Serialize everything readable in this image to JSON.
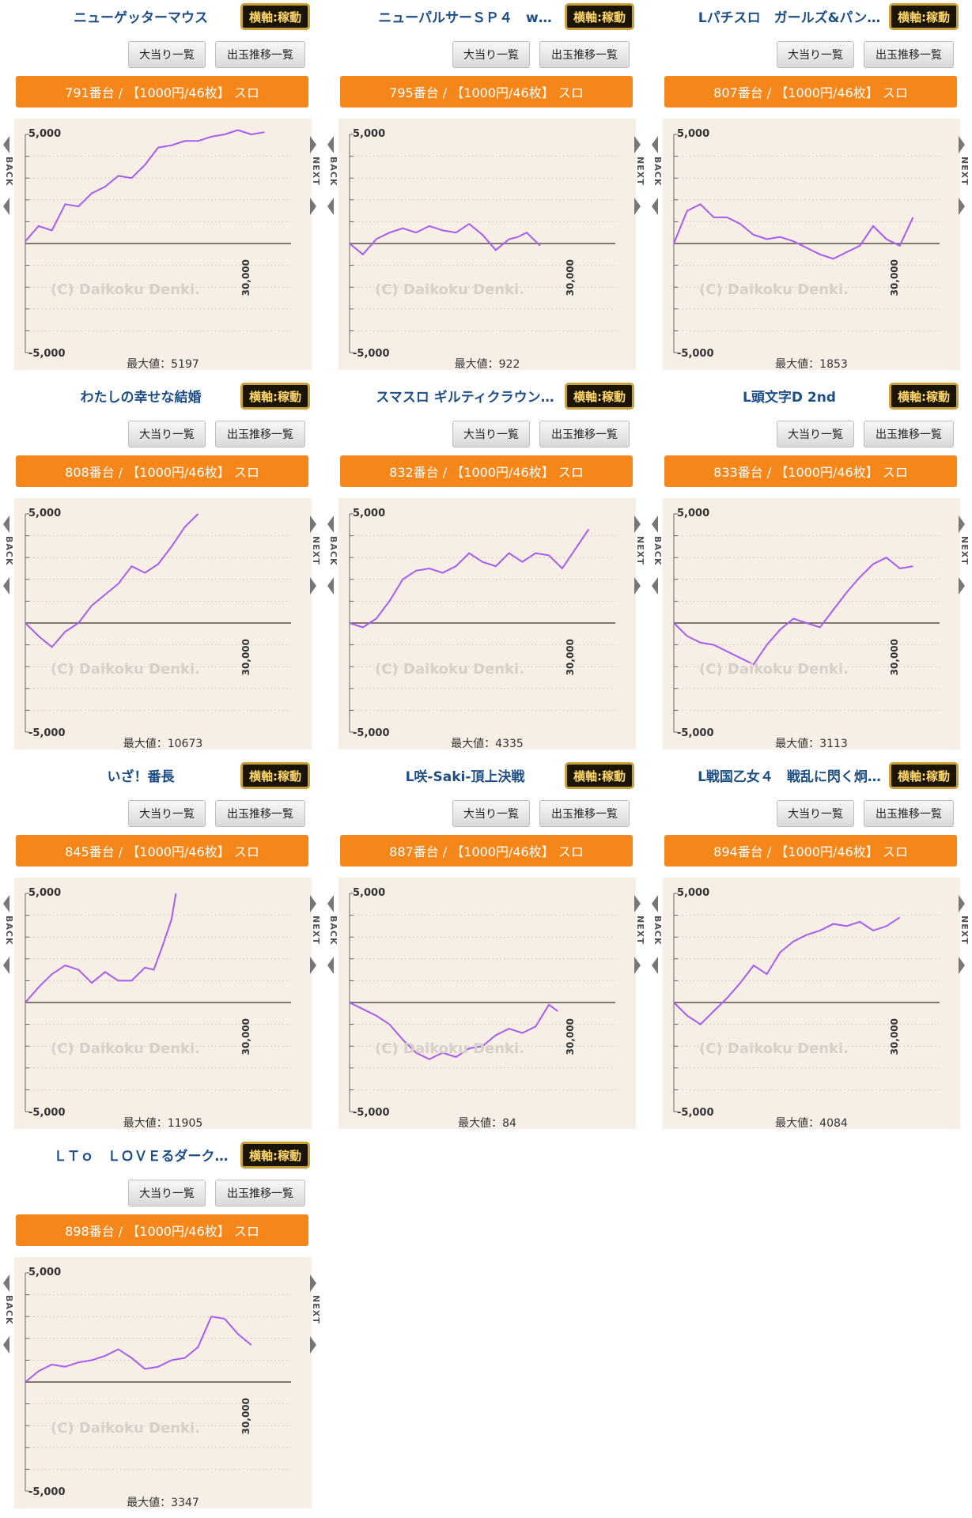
{
  "common": {
    "status_label": "横軸:稼動",
    "hits_button": "大当り一覧",
    "trend_button": "出玉推移一覧",
    "back_label": "BACK",
    "next_label": "NEXT",
    "y_top_label": "5,000",
    "y_bottom_label": "-5,000",
    "x_max_label": "30,000",
    "watermark": "(C) Daikoku Denki.",
    "colors": {
      "accent": "#f5871a",
      "line": "#a55cf0",
      "panel": "#f7efe6",
      "title": "#1e4e86"
    }
  },
  "machines": [
    {
      "title": "ニューゲッターマウス",
      "bar": "791番台 / 【1000円/46枚】 スロ",
      "max_label": "最大値：5197"
    },
    {
      "title": "ニューパルサーＳＰ４　w…",
      "bar": "795番台 / 【1000円/46枚】 スロ",
      "max_label": "最大値：922"
    },
    {
      "title": "Lパチスロ　ガールズ&パン…",
      "bar": "807番台 / 【1000円/46枚】 スロ",
      "max_label": "最大値：1853"
    },
    {
      "title": "わたしの幸せな結婚",
      "bar": "808番台 / 【1000円/46枚】 スロ",
      "max_label": "最大値：10673"
    },
    {
      "title": "スマスロ ギルティクラウン…",
      "bar": "832番台 / 【1000円/46枚】 スロ",
      "max_label": "最大値：4335"
    },
    {
      "title": "L頭文字D 2nd",
      "bar": "833番台 / 【1000円/46枚】 スロ",
      "max_label": "最大値：3113"
    },
    {
      "title": "いざ！番長",
      "bar": "845番台 / 【1000円/46枚】 スロ",
      "max_label": "最大値：11905"
    },
    {
      "title": "L咲-Saki-頂上決戦",
      "bar": "887番台 / 【1000円/46枚】 スロ",
      "max_label": "最大値：84"
    },
    {
      "title": "L戦国乙女４　戦乱に閃く炯…",
      "bar": "894番台 / 【1000円/46枚】 スロ",
      "max_label": "最大値：4084"
    },
    {
      "title": "ＬＴｏ　ＬＯＶＥるダーク…",
      "bar": "898番台 / 【1000円/46枚】 スロ",
      "max_label": "最大値：3347"
    }
  ],
  "chart_data": [
    {
      "type": "line",
      "ylim": [
        -5000,
        5000
      ],
      "xlim": [
        0,
        30000
      ],
      "x": [
        0,
        1500,
        3000,
        4500,
        6000,
        7500,
        9000,
        10500,
        12000,
        13500,
        15000,
        16500,
        18000,
        19500,
        21000,
        22500,
        24000,
        25500,
        27000
      ],
      "y": [
        100,
        800,
        600,
        1800,
        1700,
        2300,
        2600,
        3100,
        3000,
        3600,
        4400,
        4500,
        4700,
        4700,
        4900,
        5000,
        5200,
        5000,
        5100
      ]
    },
    {
      "type": "line",
      "ylim": [
        -5000,
        5000
      ],
      "xlim": [
        0,
        30000
      ],
      "x": [
        0,
        1500,
        3000,
        4500,
        6000,
        7500,
        9000,
        10500,
        12000,
        13500,
        15000,
        16500,
        18000,
        19000,
        20000,
        21500
      ],
      "y": [
        0,
        -500,
        200,
        500,
        700,
        500,
        800,
        600,
        500,
        900,
        400,
        -300,
        200,
        300,
        500,
        -100
      ]
    },
    {
      "type": "line",
      "ylim": [
        -5000,
        5000
      ],
      "xlim": [
        0,
        30000
      ],
      "x": [
        0,
        1500,
        3000,
        4500,
        6000,
        7500,
        9000,
        10500,
        12000,
        13500,
        15000,
        16500,
        18000,
        19500,
        21000,
        22500,
        24000,
        25500,
        27000
      ],
      "y": [
        0,
        1500,
        1800,
        1200,
        1200,
        900,
        400,
        200,
        300,
        100,
        -200,
        -500,
        -700,
        -400,
        -100,
        800,
        200,
        -100,
        1200
      ]
    },
    {
      "type": "line",
      "ylim": [
        -5000,
        5000
      ],
      "xlim": [
        0,
        30000
      ],
      "x": [
        0,
        1500,
        3000,
        4500,
        6000,
        7500,
        9000,
        10500,
        12000,
        13500,
        15000,
        16500,
        18000,
        19500
      ],
      "y": [
        0,
        -600,
        -1100,
        -400,
        0,
        800,
        1300,
        1800,
        2600,
        2300,
        2700,
        3500,
        4400,
        5000
      ]
    },
    {
      "type": "line",
      "ylim": [
        -5000,
        5000
      ],
      "xlim": [
        0,
        30000
      ],
      "x": [
        0,
        1500,
        3000,
        4500,
        6000,
        7500,
        9000,
        10500,
        12000,
        13500,
        15000,
        16500,
        18000,
        19500,
        21000,
        22500,
        24000,
        25500,
        27000
      ],
      "y": [
        0,
        -200,
        200,
        1000,
        2000,
        2400,
        2500,
        2300,
        2600,
        3200,
        2800,
        2600,
        3200,
        2800,
        3200,
        3100,
        2500,
        3400,
        4300
      ]
    },
    {
      "type": "line",
      "ylim": [
        -5000,
        5000
      ],
      "xlim": [
        0,
        30000
      ],
      "x": [
        0,
        1500,
        3000,
        4500,
        6000,
        7500,
        9000,
        10500,
        12000,
        13500,
        15000,
        16500,
        18000,
        19500,
        21000,
        22500,
        24000,
        25500,
        27000
      ],
      "y": [
        0,
        -600,
        -900,
        -1000,
        -1300,
        -1600,
        -1900,
        -1000,
        -300,
        200,
        0,
        -200,
        600,
        1400,
        2100,
        2700,
        3000,
        2500,
        2600
      ]
    },
    {
      "type": "line",
      "ylim": [
        -5000,
        5000
      ],
      "xlim": [
        0,
        30000
      ],
      "x": [
        0,
        1500,
        3000,
        4500,
        6000,
        7500,
        9000,
        10500,
        12000,
        13500,
        14500,
        15500,
        16500,
        17000
      ],
      "y": [
        0,
        700,
        1300,
        1700,
        1500,
        900,
        1400,
        1000,
        1000,
        1600,
        1500,
        2600,
        3800,
        5000
      ]
    },
    {
      "type": "line",
      "ylim": [
        -5000,
        5000
      ],
      "xlim": [
        0,
        30000
      ],
      "x": [
        0,
        1500,
        3000,
        4500,
        6000,
        7500,
        9000,
        10500,
        12000,
        13500,
        15000,
        16500,
        18000,
        19500,
        21000,
        22500,
        23500
      ],
      "y": [
        0,
        -300,
        -600,
        -1000,
        -1700,
        -2300,
        -2600,
        -2300,
        -2500,
        -2100,
        -2000,
        -1500,
        -1200,
        -1400,
        -1100,
        -100,
        -400
      ]
    },
    {
      "type": "line",
      "ylim": [
        -5000,
        5000
      ],
      "xlim": [
        0,
        30000
      ],
      "x": [
        0,
        1500,
        3000,
        4500,
        6000,
        7500,
        9000,
        10500,
        12000,
        13500,
        15000,
        16500,
        18000,
        19500,
        21000,
        22500,
        24000,
        25500
      ],
      "y": [
        0,
        -600,
        -1000,
        -400,
        200,
        900,
        1700,
        1300,
        2300,
        2800,
        3100,
        3300,
        3600,
        3500,
        3700,
        3300,
        3500,
        3900
      ]
    },
    {
      "type": "line",
      "ylim": [
        -5000,
        5000
      ],
      "xlim": [
        0,
        30000
      ],
      "x": [
        0,
        1500,
        3000,
        4500,
        6000,
        7500,
        9000,
        10500,
        12000,
        13500,
        15000,
        16500,
        18000,
        19500,
        21000,
        22500,
        24000,
        25500
      ],
      "y": [
        0,
        500,
        800,
        700,
        900,
        1000,
        1200,
        1500,
        1100,
        600,
        700,
        1000,
        1100,
        1600,
        3000,
        2900,
        2200,
        1700
      ]
    }
  ]
}
